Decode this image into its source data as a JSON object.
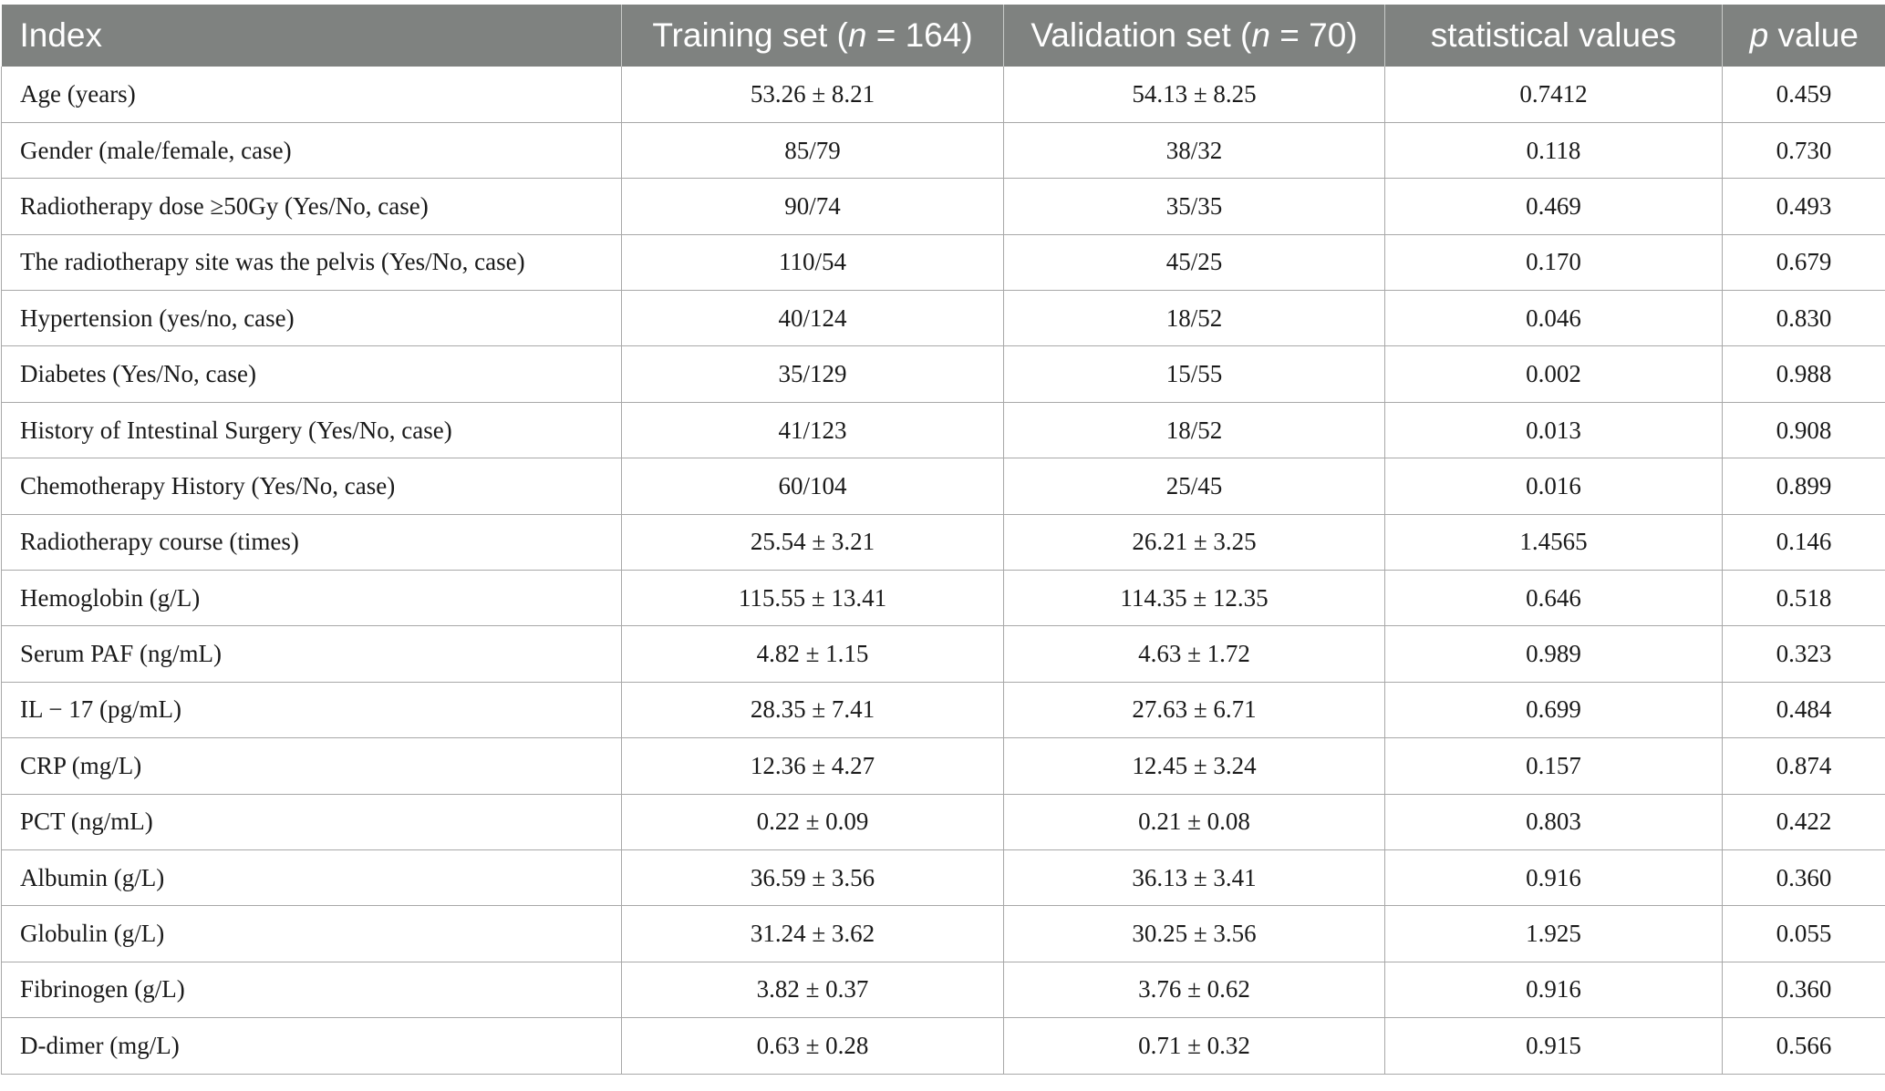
{
  "table": {
    "headers": [
      {
        "text": "Index",
        "italic_part": "",
        "suffix": ""
      },
      {
        "text": "Training set (",
        "italic_part": "n",
        "suffix": " = 164)"
      },
      {
        "text": "Validation set (",
        "italic_part": "n",
        "suffix": " = 70)"
      },
      {
        "text": "statistical values",
        "italic_part": "",
        "suffix": ""
      },
      {
        "text": "",
        "italic_part": "p",
        "suffix": " value"
      }
    ],
    "rows": [
      [
        "Age (years)",
        "53.26 ± 8.21",
        "54.13 ± 8.25",
        "0.7412",
        "0.459"
      ],
      [
        "Gender (male/female, case)",
        "85/79",
        "38/32",
        "0.118",
        "0.730"
      ],
      [
        "Radiotherapy dose ≥50Gy (Yes/No, case)",
        "90/74",
        "35/35",
        "0.469",
        "0.493"
      ],
      [
        "The radiotherapy site was the pelvis (Yes/No, case)",
        "110/54",
        "45/25",
        "0.170",
        "0.679"
      ],
      [
        "Hypertension (yes/no, case)",
        "40/124",
        "18/52",
        "0.046",
        "0.830"
      ],
      [
        "Diabetes (Yes/No, case)",
        "35/129",
        "15/55",
        "0.002",
        "0.988"
      ],
      [
        "History of Intestinal Surgery (Yes/No, case)",
        "41/123",
        "18/52",
        "0.013",
        "0.908"
      ],
      [
        "Chemotherapy History (Yes/No, case)",
        "60/104",
        "25/45",
        "0.016",
        "0.899"
      ],
      [
        "Radiotherapy course (times)",
        "25.54 ± 3.21",
        "26.21 ± 3.25",
        "1.4565",
        "0.146"
      ],
      [
        "Hemoglobin (g/L)",
        "115.55 ± 13.41",
        "114.35 ± 12.35",
        "0.646",
        "0.518"
      ],
      [
        "Serum PAF (ng/mL)",
        "4.82 ± 1.15",
        "4.63 ± 1.72",
        "0.989",
        "0.323"
      ],
      [
        "IL − 17 (pg/mL)",
        "28.35 ± 7.41",
        "27.63 ± 6.71",
        "0.699",
        "0.484"
      ],
      [
        "CRP (mg/L)",
        "12.36 ± 4.27",
        "12.45 ± 3.24",
        "0.157",
        "0.874"
      ],
      [
        "PCT (ng/mL)",
        "0.22 ± 0.09",
        "0.21 ± 0.08",
        "0.803",
        "0.422"
      ],
      [
        "Albumin (g/L)",
        "36.59 ± 3.56",
        "36.13 ± 3.41",
        "0.916",
        "0.360"
      ],
      [
        "Globulin (g/L)",
        "31.24 ± 3.62",
        "30.25 ± 3.56",
        "1.925",
        "0.055"
      ],
      [
        "Fibrinogen (g/L)",
        "3.82 ± 0.37",
        "3.76 ± 0.62",
        "0.916",
        "0.360"
      ],
      [
        "D-dimer (mg/L)",
        "0.63 ± 0.28",
        "0.71 ± 0.32",
        "0.915",
        "0.566"
      ]
    ]
  }
}
